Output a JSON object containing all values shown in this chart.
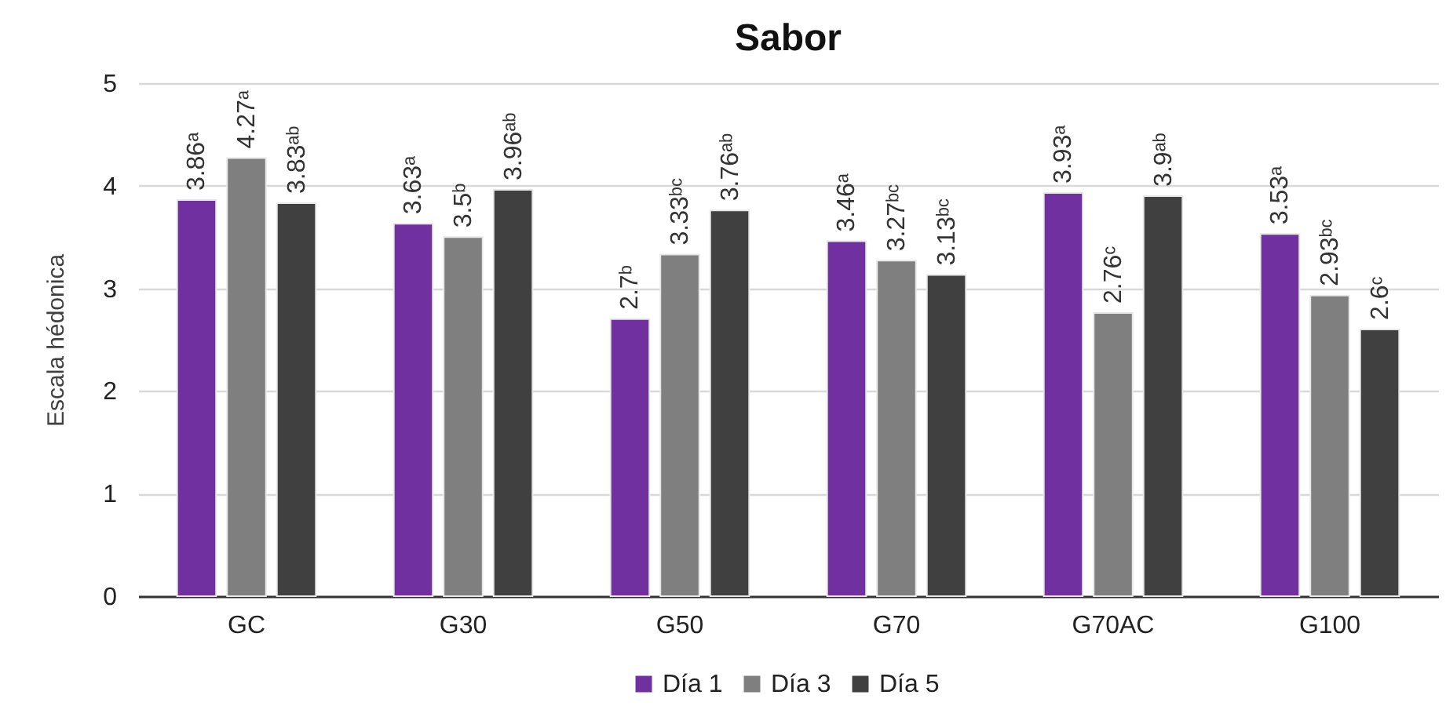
{
  "chart_data": {
    "type": "bar",
    "title": "Sabor",
    "ylabel": "Escala hédonica",
    "categories": [
      "GC",
      "G30",
      "G50",
      "G70",
      "G70AC",
      "G100"
    ],
    "series": [
      {
        "name": "Día 1",
        "color": "#7030a0",
        "values": [
          3.86,
          3.63,
          2.7,
          3.46,
          3.93,
          3.53
        ],
        "value_labels": [
          "3.86ᵃ",
          "3.63ᵃ",
          "2.7ᵇ",
          "3.46ᵃ",
          "3.93ᵃ",
          "3.53ᵃ"
        ]
      },
      {
        "name": "Día 3",
        "color": "#7f7f7f",
        "values": [
          4.27,
          3.5,
          3.33,
          3.27,
          2.76,
          2.93
        ],
        "value_labels": [
          "4.27ᵃ",
          "3.5ᵇ",
          "3.33ᵇᶜ",
          "3.27ᵇᶜ",
          "2.76ᶜ",
          "2.93ᵇᶜ"
        ]
      },
      {
        "name": "Día 5",
        "color": "#404040",
        "values": [
          3.83,
          3.96,
          3.76,
          3.13,
          3.9,
          2.6
        ],
        "value_labels": [
          "3.83ᵃᵇ",
          "3.96ᵃᵇ",
          "3.76ᵃᵇ",
          "3.13ᵇᶜ",
          "3.9ᵃᵇ",
          "2.6ᶜ"
        ]
      }
    ],
    "ylim": [
      0,
      5
    ],
    "yticks": [
      0,
      1,
      2,
      3,
      4,
      5
    ],
    "grid": "y",
    "legend": "bottom"
  }
}
